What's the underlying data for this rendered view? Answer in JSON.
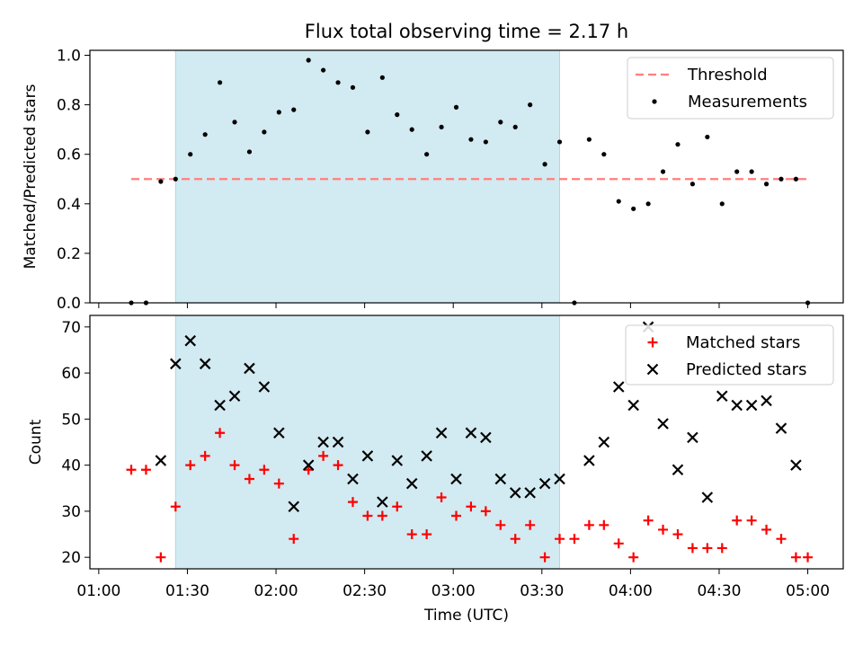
{
  "chart_data": {
    "title": "Flux total observing time = 2.17 h",
    "x_label": "Time (UTC)",
    "x_ticks": [
      "01:00",
      "01:30",
      "02:00",
      "02:30",
      "03:00",
      "03:30",
      "04:00",
      "04:30",
      "05:00"
    ],
    "x_tick_values": [
      "01:00",
      "01:30",
      "02:00",
      "02:30",
      "03:00",
      "03:30",
      "04:00",
      "04:30",
      "05:00"
    ],
    "x_range": [
      "00:57",
      "05:12"
    ],
    "highlight_span": [
      "01:26",
      "03:36"
    ],
    "highlight_color": "#add8e6",
    "panels": [
      {
        "type": "scatter",
        "ylabel": "Matched/Predicted stars",
        "ylim": [
          0,
          1.02
        ],
        "yticks": [
          "0.0",
          "0.2",
          "0.4",
          "0.6",
          "0.8",
          "1.0"
        ],
        "ytick_values": [
          0,
          0.2,
          0.4,
          0.6,
          0.8,
          1.0
        ],
        "legend_position": "upper right",
        "threshold": {
          "name": "Threshold",
          "value": 0.5,
          "x_start": "01:11",
          "x_end": "05:00",
          "color": "#ff7f7f"
        },
        "series": [
          {
            "name": "Measurements",
            "color": "#000000",
            "marker": "dot",
            "points": [
              [
                "01:11",
                0.0
              ],
              [
                "01:16",
                0.0
              ],
              [
                "01:21",
                0.49
              ],
              [
                "01:26",
                0.5
              ],
              [
                "01:31",
                0.6
              ],
              [
                "01:36",
                0.68
              ],
              [
                "01:41",
                0.89
              ],
              [
                "01:46",
                0.73
              ],
              [
                "01:51",
                0.61
              ],
              [
                "01:56",
                0.69
              ],
              [
                "02:01",
                0.77
              ],
              [
                "02:06",
                0.78
              ],
              [
                "02:11",
                0.98
              ],
              [
                "02:16",
                0.94
              ],
              [
                "02:21",
                0.89
              ],
              [
                "02:26",
                0.87
              ],
              [
                "02:31",
                0.69
              ],
              [
                "02:36",
                0.91
              ],
              [
                "02:41",
                0.76
              ],
              [
                "02:46",
                0.7
              ],
              [
                "02:51",
                0.6
              ],
              [
                "02:56",
                0.71
              ],
              [
                "03:01",
                0.79
              ],
              [
                "03:06",
                0.66
              ],
              [
                "03:11",
                0.65
              ],
              [
                "03:16",
                0.73
              ],
              [
                "03:21",
                0.71
              ],
              [
                "03:26",
                0.8
              ],
              [
                "03:31",
                0.56
              ],
              [
                "03:36",
                0.65
              ],
              [
                "03:41",
                0.0
              ],
              [
                "03:46",
                0.66
              ],
              [
                "03:51",
                0.6
              ],
              [
                "03:56",
                0.41
              ],
              [
                "04:01",
                0.38
              ],
              [
                "04:06",
                0.4
              ],
              [
                "04:11",
                0.53
              ],
              [
                "04:16",
                0.64
              ],
              [
                "04:21",
                0.48
              ],
              [
                "04:26",
                0.67
              ],
              [
                "04:31",
                0.4
              ],
              [
                "04:36",
                0.53
              ],
              [
                "04:41",
                0.53
              ],
              [
                "04:46",
                0.48
              ],
              [
                "04:51",
                0.5
              ],
              [
                "04:56",
                0.5
              ],
              [
                "05:00",
                0.0
              ]
            ]
          }
        ]
      },
      {
        "type": "scatter",
        "ylabel": "Count",
        "ylim": [
          17.5,
          72.5
        ],
        "yticks": [
          "20",
          "30",
          "40",
          "50",
          "60",
          "70"
        ],
        "ytick_values": [
          20,
          30,
          40,
          50,
          60,
          70
        ],
        "legend_position": "upper right",
        "series": [
          {
            "name": "Matched stars",
            "color": "#ff0000",
            "marker": "plus",
            "points": [
              [
                "01:11",
                39
              ],
              [
                "01:16",
                39
              ],
              [
                "01:21",
                20
              ],
              [
                "01:26",
                31
              ],
              [
                "01:31",
                40
              ],
              [
                "01:36",
                42
              ],
              [
                "01:41",
                47
              ],
              [
                "01:46",
                40
              ],
              [
                "01:51",
                37
              ],
              [
                "01:56",
                39
              ],
              [
                "02:01",
                36
              ],
              [
                "02:06",
                24
              ],
              [
                "02:11",
                39
              ],
              [
                "02:16",
                42
              ],
              [
                "02:21",
                40
              ],
              [
                "02:26",
                32
              ],
              [
                "02:31",
                29
              ],
              [
                "02:36",
                29
              ],
              [
                "02:41",
                31
              ],
              [
                "02:46",
                25
              ],
              [
                "02:51",
                25
              ],
              [
                "02:56",
                33
              ],
              [
                "03:01",
                29
              ],
              [
                "03:06",
                31
              ],
              [
                "03:11",
                30
              ],
              [
                "03:16",
                27
              ],
              [
                "03:21",
                24
              ],
              [
                "03:26",
                27
              ],
              [
                "03:31",
                20
              ],
              [
                "03:36",
                24
              ],
              [
                "03:41",
                24
              ],
              [
                "03:46",
                27
              ],
              [
                "03:51",
                27
              ],
              [
                "03:56",
                23
              ],
              [
                "04:01",
                20
              ],
              [
                "04:06",
                28
              ],
              [
                "04:11",
                26
              ],
              [
                "04:16",
                25
              ],
              [
                "04:21",
                22
              ],
              [
                "04:26",
                22
              ],
              [
                "04:31",
                22
              ],
              [
                "04:36",
                28
              ],
              [
                "04:41",
                28
              ],
              [
                "04:46",
                26
              ],
              [
                "04:51",
                24
              ],
              [
                "04:56",
                20
              ],
              [
                "05:00",
                20
              ]
            ]
          },
          {
            "name": "Predicted stars",
            "color": "#000000",
            "marker": "x",
            "points": [
              [
                "01:21",
                41
              ],
              [
                "01:26",
                62
              ],
              [
                "01:31",
                67
              ],
              [
                "01:36",
                62
              ],
              [
                "01:41",
                53
              ],
              [
                "01:46",
                55
              ],
              [
                "01:51",
                61
              ],
              [
                "01:56",
                57
              ],
              [
                "02:01",
                47
              ],
              [
                "02:06",
                31
              ],
              [
                "02:11",
                40
              ],
              [
                "02:16",
                45
              ],
              [
                "02:21",
                45
              ],
              [
                "02:26",
                37
              ],
              [
                "02:31",
                42
              ],
              [
                "02:36",
                32
              ],
              [
                "02:41",
                41
              ],
              [
                "02:46",
                36
              ],
              [
                "02:51",
                42
              ],
              [
                "02:56",
                47
              ],
              [
                "03:01",
                37
              ],
              [
                "03:06",
                47
              ],
              [
                "03:11",
                46
              ],
              [
                "03:16",
                37
              ],
              [
                "03:21",
                34
              ],
              [
                "03:26",
                34
              ],
              [
                "03:31",
                36
              ],
              [
                "03:36",
                37
              ],
              [
                "03:46",
                41
              ],
              [
                "03:51",
                45
              ],
              [
                "03:56",
                57
              ],
              [
                "04:01",
                53
              ],
              [
                "04:06",
                70
              ],
              [
                "04:11",
                49
              ],
              [
                "04:16",
                39
              ],
              [
                "04:21",
                46
              ],
              [
                "04:26",
                33
              ],
              [
                "04:31",
                55
              ],
              [
                "04:36",
                53
              ],
              [
                "04:41",
                53
              ],
              [
                "04:46",
                54
              ],
              [
                "04:51",
                48
              ],
              [
                "04:56",
                40
              ]
            ]
          }
        ]
      }
    ]
  }
}
